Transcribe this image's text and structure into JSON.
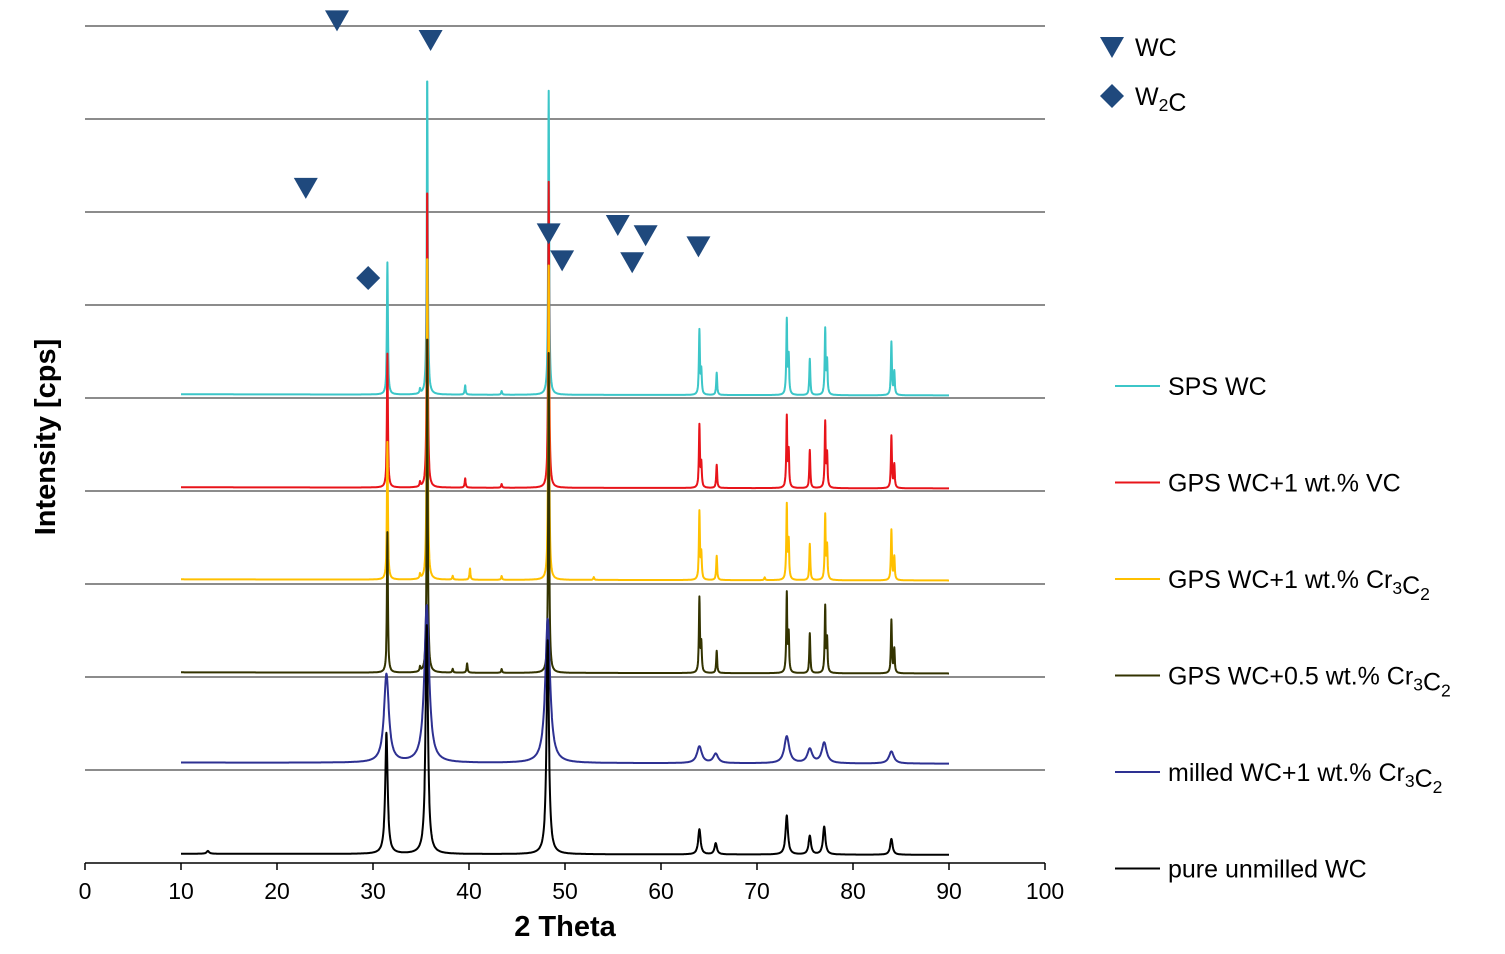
{
  "chart_data": {
    "type": "line",
    "title": "",
    "xlabel": "2 Theta",
    "ylabel": "Intensity [cps]",
    "xlim": [
      0,
      100
    ],
    "ylim": [
      0,
      9
    ],
    "xticks": [
      0,
      10,
      20,
      30,
      40,
      50,
      60,
      70,
      80,
      90,
      100
    ],
    "y_tick_labels_shown": false,
    "grid": "horizontal",
    "legend_placement": "right",
    "x_range_measured": [
      10,
      90
    ],
    "series": [
      {
        "name": "SPS WC",
        "color": "#3cc6c8",
        "offset": 5.04,
        "width": 0.06,
        "peaks": [
          [
            31.5,
            1.42
          ],
          [
            34.9,
            0.05
          ],
          [
            35.65,
            3.46
          ],
          [
            39.6,
            0.1
          ],
          [
            43.4,
            0.04
          ],
          [
            48.3,
            3.27
          ],
          [
            64.0,
            0.69
          ],
          [
            64.2,
            0.25
          ],
          [
            65.8,
            0.24
          ],
          [
            73.1,
            0.8
          ],
          [
            73.3,
            0.4
          ],
          [
            75.5,
            0.39
          ],
          [
            77.1,
            0.7
          ],
          [
            77.3,
            0.35
          ],
          [
            84.0,
            0.57
          ],
          [
            84.3,
            0.25
          ]
        ]
      },
      {
        "name": "GPS WC+1 wt.% VC",
        "color": "#e8141a",
        "offset": 4.04,
        "width": 0.06,
        "peaks": [
          [
            31.5,
            1.44
          ],
          [
            34.9,
            0.05
          ],
          [
            35.65,
            3.25
          ],
          [
            39.6,
            0.1
          ],
          [
            43.4,
            0.04
          ],
          [
            48.3,
            3.29
          ],
          [
            64.0,
            0.67
          ],
          [
            64.2,
            0.25
          ],
          [
            65.8,
            0.25
          ],
          [
            73.1,
            0.76
          ],
          [
            73.3,
            0.38
          ],
          [
            75.5,
            0.41
          ],
          [
            77.1,
            0.7
          ],
          [
            77.3,
            0.35
          ],
          [
            84.0,
            0.56
          ],
          [
            84.3,
            0.25
          ]
        ]
      },
      {
        "name": "GPS WC+1 wt.% Cr3C2",
        "color": "#ffc000",
        "offset": 3.05,
        "width": 0.06,
        "peaks": [
          [
            31.5,
            1.48
          ],
          [
            34.9,
            0.05
          ],
          [
            35.65,
            3.54
          ],
          [
            38.3,
            0.04
          ],
          [
            40.1,
            0.12
          ],
          [
            43.4,
            0.04
          ],
          [
            48.3,
            3.38
          ],
          [
            53.0,
            0.03
          ],
          [
            64.0,
            0.73
          ],
          [
            64.2,
            0.27
          ],
          [
            65.8,
            0.26
          ],
          [
            70.8,
            0.03
          ],
          [
            73.1,
            0.8
          ],
          [
            73.3,
            0.4
          ],
          [
            75.5,
            0.39
          ],
          [
            77.1,
            0.69
          ],
          [
            77.3,
            0.35
          ],
          [
            84.0,
            0.54
          ],
          [
            84.3,
            0.25
          ]
        ]
      },
      {
        "name": "GPS WC+0.5 wt.% Cr3C2",
        "color": "#333300",
        "offset": 2.05,
        "width": 0.06,
        "peaks": [
          [
            31.5,
            1.51
          ],
          [
            34.9,
            0.05
          ],
          [
            35.65,
            3.68
          ],
          [
            38.3,
            0.04
          ],
          [
            39.8,
            0.1
          ],
          [
            43.4,
            0.04
          ],
          [
            48.3,
            3.44
          ],
          [
            64.0,
            0.8
          ],
          [
            64.2,
            0.3
          ],
          [
            65.8,
            0.24
          ],
          [
            73.1,
            0.85
          ],
          [
            73.3,
            0.4
          ],
          [
            75.5,
            0.43
          ],
          [
            77.1,
            0.71
          ],
          [
            77.3,
            0.35
          ],
          [
            84.0,
            0.57
          ],
          [
            84.3,
            0.26
          ]
        ]
      },
      {
        "name": "milled WC+1 wt.% Cr3C2",
        "color": "#2e3192",
        "offset": 1.08,
        "width": 0.3,
        "peaks": [
          [
            31.4,
            0.95
          ],
          [
            35.6,
            1.69
          ],
          [
            48.2,
            1.55
          ],
          [
            64.0,
            0.18
          ],
          [
            65.7,
            0.1
          ],
          [
            73.1,
            0.29
          ],
          [
            75.5,
            0.15
          ],
          [
            77.0,
            0.22
          ],
          [
            84.0,
            0.13
          ]
        ]
      },
      {
        "name": "pure unmilled WC",
        "color": "#000000",
        "offset": 0.1,
        "width": 0.15,
        "peaks": [
          [
            12.8,
            0.03
          ],
          [
            31.4,
            1.3
          ],
          [
            35.6,
            2.46
          ],
          [
            48.2,
            2.3
          ],
          [
            64.0,
            0.27
          ],
          [
            65.7,
            0.12
          ],
          [
            73.1,
            0.42
          ],
          [
            75.5,
            0.2
          ],
          [
            77.0,
            0.3
          ],
          [
            84.0,
            0.17
          ]
        ]
      }
    ],
    "markers": {
      "color": "#1f497d",
      "legend": [
        {
          "symbol": "triangle-down",
          "label": "WC"
        },
        {
          "symbol": "diamond",
          "label": "W2C"
        }
      ],
      "WC": [
        [
          26.25,
          9.06
        ],
        [
          36.0,
          8.85
        ],
        [
          23.0,
          7.26
        ],
        [
          48.3,
          6.77
        ],
        [
          49.7,
          6.48
        ],
        [
          55.5,
          6.86
        ],
        [
          58.4,
          6.75
        ],
        [
          57.0,
          6.46
        ],
        [
          63.9,
          6.63
        ]
      ],
      "W2C": [
        [
          29.5,
          6.29
        ]
      ]
    }
  }
}
